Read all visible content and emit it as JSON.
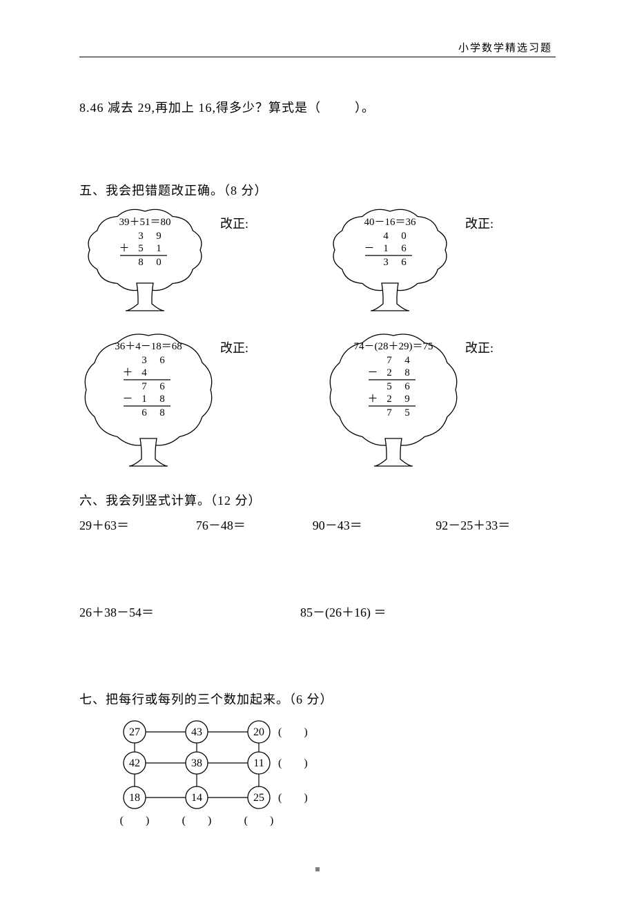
{
  "header": {
    "right_text": "小学数学精选习题"
  },
  "q8": {
    "prefix": "8.46 减去 29,再加上 16,得多少？算式是（",
    "suffix": "）。"
  },
  "section5": {
    "title": "五、我会把错题改正确。（8 分）",
    "correct_label": "改正:",
    "trees": {
      "t1": {
        "expr": "39＋51＝80",
        "rows": [
          {
            "op": "",
            "d1": "3",
            "d2": "9"
          },
          {
            "op": "＋",
            "d1": "5",
            "d2": "1"
          },
          {
            "line": true
          },
          {
            "op": "",
            "d1": "8",
            "d2": "0"
          }
        ]
      },
      "t2": {
        "expr": "40－16＝36",
        "rows": [
          {
            "op": "",
            "d1": "4",
            "d2": "0"
          },
          {
            "op": "－",
            "d1": "1",
            "d2": "6"
          },
          {
            "line": true
          },
          {
            "op": "",
            "d1": "3",
            "d2": "6"
          }
        ]
      },
      "t3": {
        "expr": "36＋4－18＝68",
        "rows": [
          {
            "op": "",
            "d1": "3",
            "d2": "6"
          },
          {
            "op": "＋",
            "d1": "4",
            "d2": ""
          },
          {
            "line": true
          },
          {
            "op": "",
            "d1": "7",
            "d2": "6"
          },
          {
            "op": "－",
            "d1": "1",
            "d2": "8"
          },
          {
            "line": true
          },
          {
            "op": "",
            "d1": "6",
            "d2": "8"
          }
        ]
      },
      "t4": {
        "expr": "74－(28＋29)＝75",
        "rows": [
          {
            "op": "",
            "d1": "7",
            "d2": "4"
          },
          {
            "op": "－",
            "d1": "2",
            "d2": "8"
          },
          {
            "line": true
          },
          {
            "op": "",
            "d1": "5",
            "d2": "6"
          },
          {
            "op": "＋",
            "d1": "2",
            "d2": "9"
          },
          {
            "line": true
          },
          {
            "op": "",
            "d1": "7",
            "d2": "5"
          }
        ]
      }
    }
  },
  "section6": {
    "title": "六、我会列竖式计算。（12 分）",
    "items": [
      "29＋63＝",
      "76－48＝",
      "90－43＝",
      "92－25＋33＝",
      "26＋38－54＝",
      "85－(26＋16) ＝"
    ]
  },
  "section7": {
    "title": "七、把每行或每列的三个数加起来。（6 分）",
    "grid": {
      "rows": [
        [
          "27",
          "43",
          "20"
        ],
        [
          "42",
          "38",
          "11"
        ],
        [
          "18",
          "14",
          "25"
        ]
      ],
      "row_blank": "(　　)",
      "col_blank": "(　　)"
    },
    "style": {
      "circle_stroke": "#000000",
      "circle_fill": "#ffffff",
      "line_color": "#000000",
      "font_size": 16
    }
  },
  "colors": {
    "text": "#000000",
    "background": "#ffffff",
    "rule": "#000000"
  }
}
